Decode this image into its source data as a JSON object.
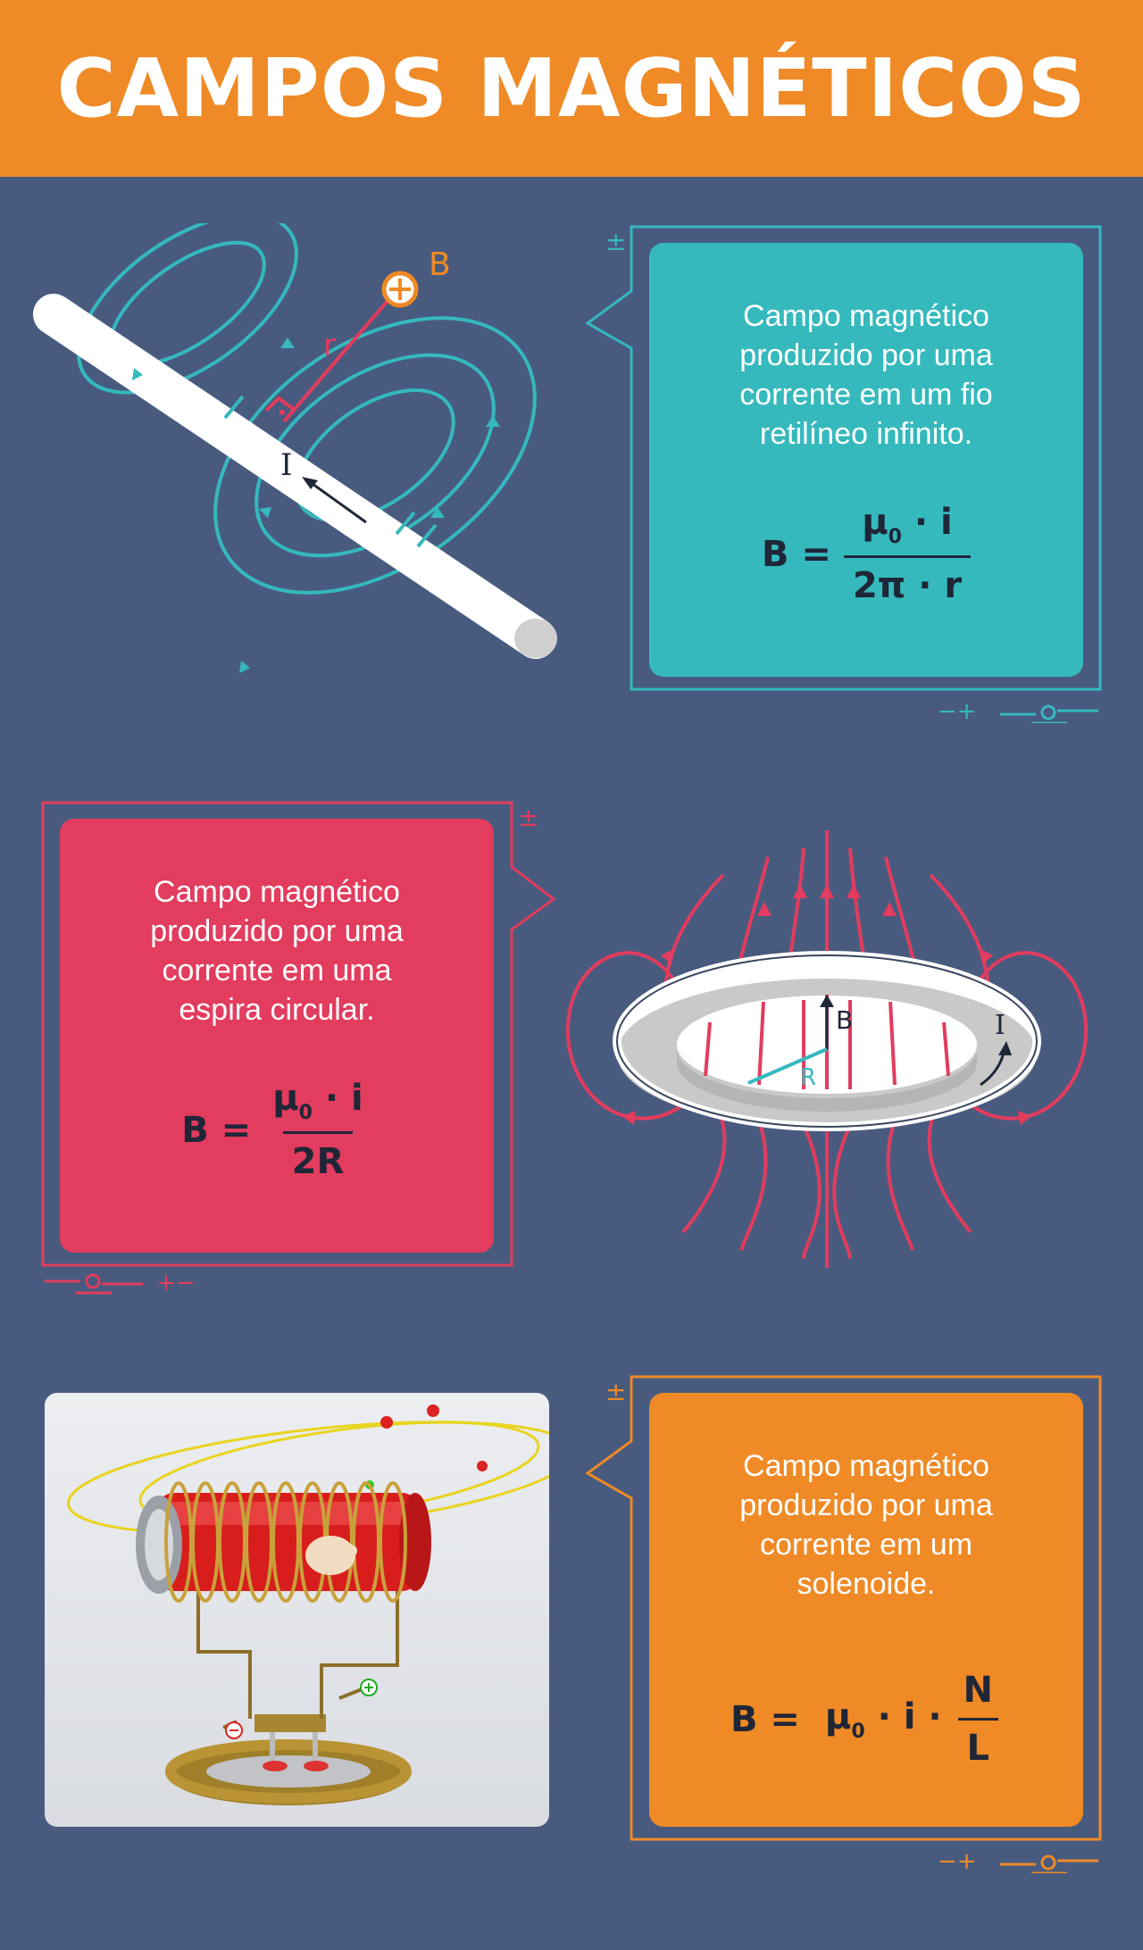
{
  "header": {
    "title": "CAMPOS MAGNÉTICOS"
  },
  "colors": {
    "background": "#485b7f",
    "header": "#ef8a26",
    "teal": "#35b9bd",
    "red": "#e23c5e",
    "orange": "#ef8a26",
    "dark": "#1f2637"
  },
  "sections": {
    "wire": {
      "desc": [
        "Campo magnético",
        "produzido por uma",
        "corrente em um fio",
        "retilíneo infinito."
      ],
      "formula": {
        "lhs": "B =",
        "num_mu": "μ",
        "num_sub": "0",
        "num_rest": " · i",
        "den": "2π · r"
      },
      "labels": {
        "B": "B",
        "r": "r",
        "I": "I"
      }
    },
    "loop": {
      "desc": [
        "Campo magnético",
        "produzido por uma",
        "corrente em uma",
        "espira circular."
      ],
      "formula": {
        "lhs": "B =",
        "num_mu": "μ",
        "num_sub": "0",
        "num_rest": " · i",
        "den": "2R"
      },
      "labels": {
        "B": "B",
        "I": "I",
        "R": "R"
      }
    },
    "solenoid": {
      "desc": [
        "Campo magnético",
        "produzido por uma",
        "corrente em um",
        "solenoide."
      ],
      "formula": {
        "lhs": "B =",
        "mu": "μ",
        "sub": "0",
        "mid": " · i ·",
        "num": "N",
        "den": "L"
      }
    }
  },
  "decor": {
    "plus_minus": "±",
    "minus_plus": "−+",
    "plus_minus_row": "+−"
  }
}
